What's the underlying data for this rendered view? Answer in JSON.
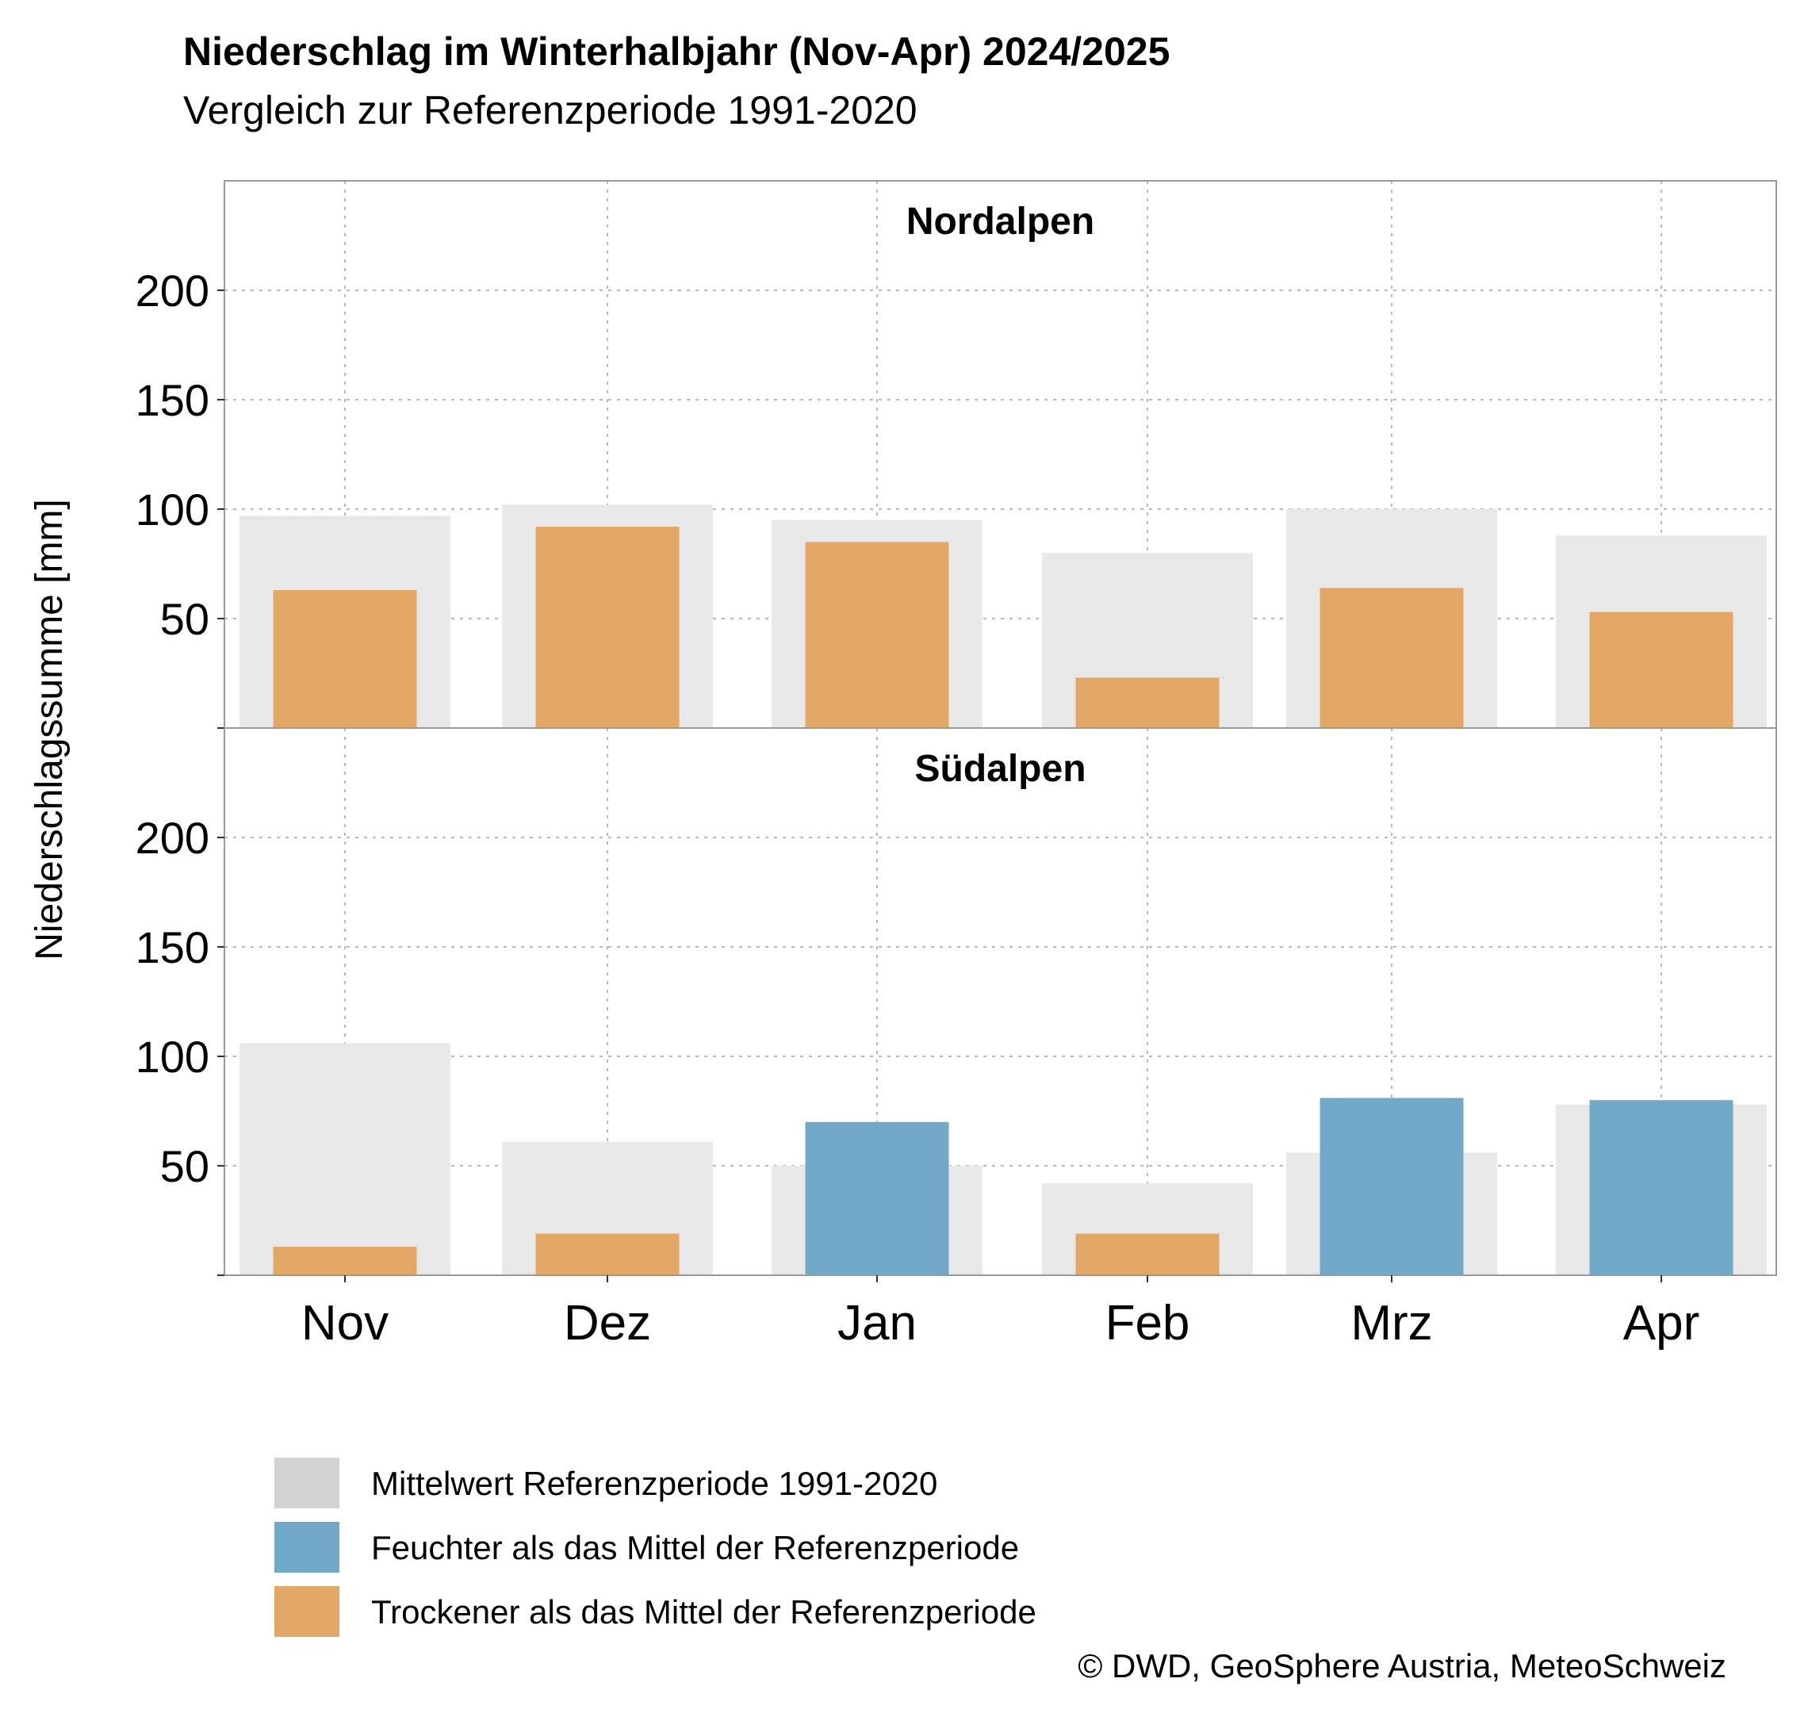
{
  "chart_data": {
    "type": "bar",
    "title": "Niederschlag im Winterhalbjahr (Nov-Apr) 2024/2025",
    "subtitle": "Vergleich zur Referenzperiode 1991-2020",
    "ylabel": "Niederschlagssumme [mm]",
    "xlabel": "",
    "categories": [
      "Nov",
      "Dez",
      "Jan",
      "Feb",
      "Mrz",
      "Apr"
    ],
    "ylim": [
      0,
      250
    ],
    "yticks": [
      50,
      100,
      150,
      200
    ],
    "grid": true,
    "colors": {
      "reference": "#e8e8e8",
      "reference_legend": "#d3d3d3",
      "wetter": "#72a9c8",
      "drier": "#e2a765"
    },
    "panels": [
      {
        "name": "Nordalpen",
        "reference": [
          97,
          102,
          95,
          80,
          100,
          88
        ],
        "values": [
          63,
          92,
          85,
          23,
          64,
          53
        ]
      },
      {
        "name": "Südalpen",
        "reference": [
          106,
          61,
          50,
          42,
          56,
          78
        ],
        "values": [
          13,
          19,
          70,
          19,
          81,
          80
        ]
      }
    ],
    "legend": {
      "position": "bottom",
      "entries": [
        {
          "key": "reference",
          "label": "Mittelwert Referenzperiode 1991-2020"
        },
        {
          "key": "wetter",
          "label": "Feuchter als das Mittel der Referenzperiode"
        },
        {
          "key": "drier",
          "label": "Trockener als das Mittel der Referenzperiode"
        }
      ]
    },
    "copyright": "© DWD, GeoSphere Austria, MeteoSchweiz"
  }
}
